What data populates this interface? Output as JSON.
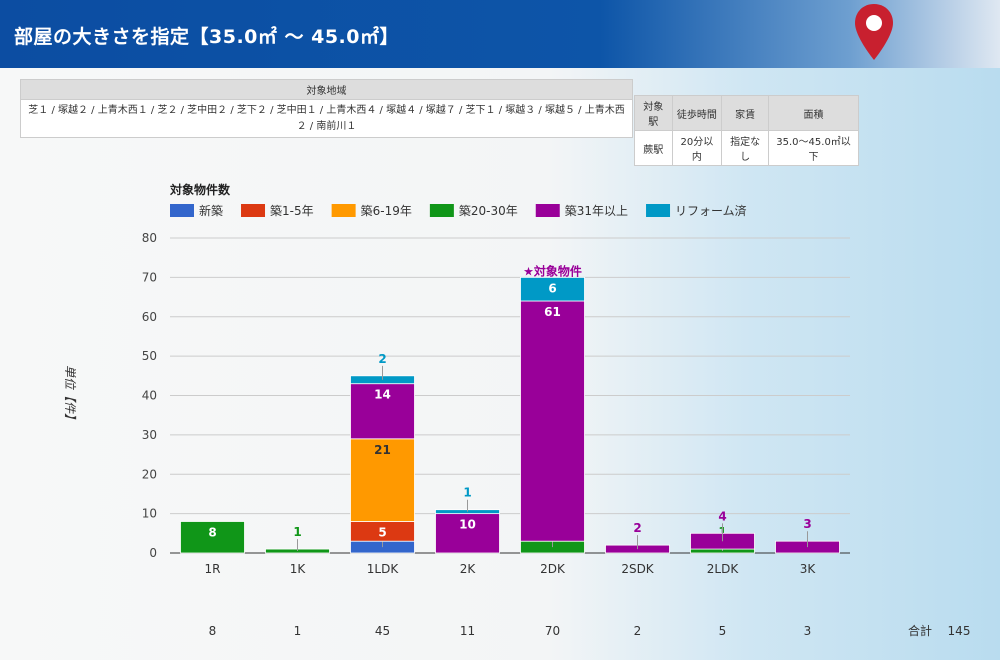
{
  "header": {
    "title": "部屋の大きさを指定【35.0㎡ 〜 45.0㎡】"
  },
  "area_table": {
    "header": "対象地域",
    "value": "芝１ / 塚越２ / 上青木西１ / 芝２ / 芝中田２ / 芝下２ / 芝中田１ / 上青木西４ / 塚越４ / 塚越７ / 芝下１ / 塚越３ / 塚越５ / 上青木西２ / 南前川１"
  },
  "cond_table": {
    "headers": [
      "対象駅",
      "徒歩時間",
      "家賃",
      "面積"
    ],
    "values": [
      "蕨駅",
      "20分以内",
      "指定なし",
      "35.0〜45.0㎡以下"
    ]
  },
  "chart_data": {
    "type": "bar",
    "stacked": true,
    "title": "対象物件数",
    "ylabel": "単位【件】",
    "ylim": [
      0,
      80
    ],
    "yticks": [
      0,
      10,
      20,
      30,
      40,
      50,
      60,
      70,
      80
    ],
    "grid": true,
    "legend_position": "top-left",
    "categories": [
      "1R",
      "1K",
      "1LDK",
      "2K",
      "2DK",
      "2SDK",
      "2LDK",
      "3K"
    ],
    "series": [
      {
        "name": "新築",
        "color": "#3366cc",
        "values": [
          0,
          0,
          3,
          0,
          0,
          0,
          0,
          0
        ]
      },
      {
        "name": "築1-5年",
        "color": "#dc3912",
        "values": [
          0,
          0,
          5,
          0,
          0,
          0,
          0,
          0
        ]
      },
      {
        "name": "築6-19年",
        "color": "#ff9900",
        "values": [
          0,
          0,
          21,
          0,
          0,
          0,
          0,
          0
        ]
      },
      {
        "name": "築20-30年",
        "color": "#109618",
        "values": [
          8,
          1,
          0,
          0,
          3,
          0,
          1,
          0
        ]
      },
      {
        "name": "築31年以上",
        "color": "#990099",
        "values": [
          0,
          0,
          14,
          10,
          61,
          2,
          4,
          3
        ]
      },
      {
        "name": "リフォーム済",
        "color": "#0099c6",
        "values": [
          0,
          0,
          2,
          1,
          6,
          0,
          0,
          0
        ]
      }
    ],
    "annotation": {
      "category": "2DK",
      "text": "★対象物件"
    },
    "totals": [
      8,
      1,
      45,
      11,
      70,
      2,
      5,
      3
    ],
    "total_label": "合計",
    "grand_total": 145
  }
}
